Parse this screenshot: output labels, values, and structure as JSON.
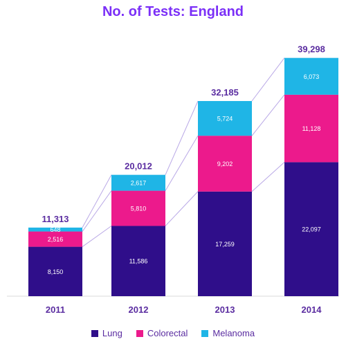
{
  "chart_data": {
    "type": "bar",
    "stacked": true,
    "title": "No. of Tests: England",
    "categories": [
      "2011",
      "2012",
      "2013",
      "2014"
    ],
    "series": [
      {
        "name": "Lung",
        "color": "#2f0e8a",
        "values": [
          8150,
          11586,
          17259,
          22097
        ],
        "labels": [
          "8,150",
          "11,586",
          "17,259",
          "22,097"
        ]
      },
      {
        "name": "Colorectal",
        "color": "#ec1a8c",
        "values": [
          2516,
          5810,
          9202,
          11128
        ],
        "labels": [
          "2,516",
          "5,810",
          "9,202",
          "11,128"
        ]
      },
      {
        "name": "Melanoma",
        "color": "#1fb5e6",
        "values": [
          648,
          2617,
          5724,
          6073
        ],
        "labels": [
          "648",
          "2,617",
          "5,724",
          "6,073"
        ]
      }
    ],
    "totals": [
      11313,
      20012,
      32185,
      39298
    ],
    "total_labels": [
      "11,313",
      "20,012",
      "32,185",
      "39,298"
    ],
    "ylim": [
      0,
      42000
    ],
    "grid": false,
    "legend_position": "bottom",
    "xlabel": "",
    "ylabel": ""
  }
}
